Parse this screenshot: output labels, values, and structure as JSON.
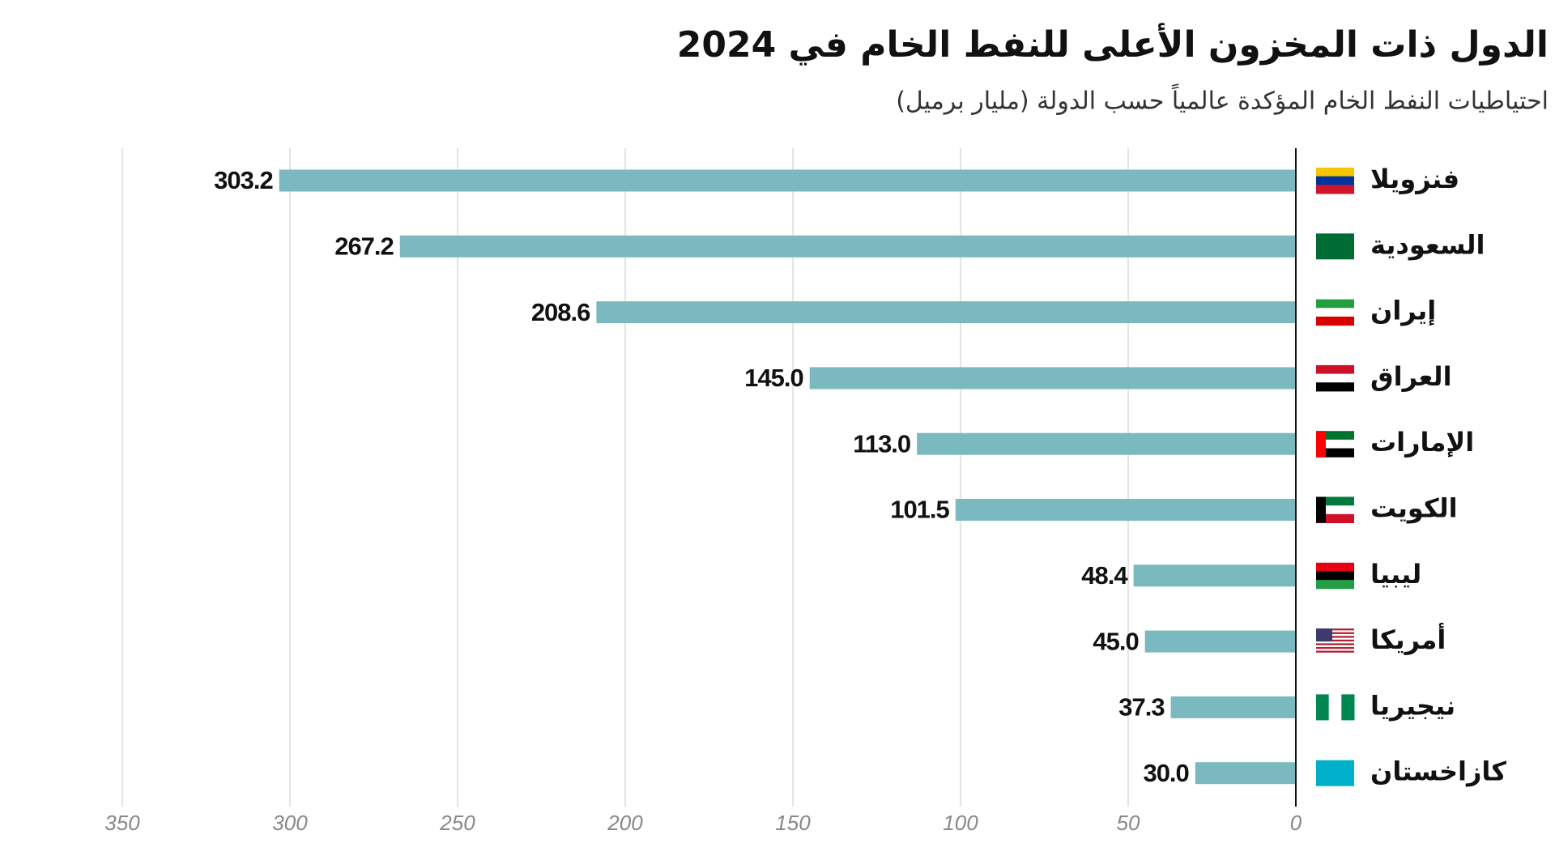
{
  "chart_data": {
    "type": "bar",
    "orientation": "horizontal",
    "reversed_x": true,
    "title": "الدول ذات المخزون الأعلى للنفط الخام في 2024",
    "subtitle": "احتياطيات النفط الخام المؤكدة عالمياً حسب الدولة (مليار برميل)",
    "categories": [
      "فنزويلا",
      "السعودية",
      "إيران",
      "العراق",
      "الإمارات",
      "الكويت",
      "ليبيا",
      "أمريكا",
      "نيجيريا",
      "كازاخستان"
    ],
    "values": [
      303.2,
      267.2,
      208.6,
      145.0,
      113.0,
      101.5,
      48.4,
      45.0,
      37.3,
      30.0
    ],
    "value_labels": [
      "303.2",
      "267.2",
      "208.6",
      "145.0",
      "113.0",
      "101.5",
      "48.4",
      "45.0",
      "37.3",
      "30.0"
    ],
    "color": "#7ab9bf",
    "xlim": [
      0,
      350
    ],
    "xticks": [
      0,
      50,
      100,
      150,
      200,
      250,
      300,
      350
    ],
    "grid": true
  }
}
